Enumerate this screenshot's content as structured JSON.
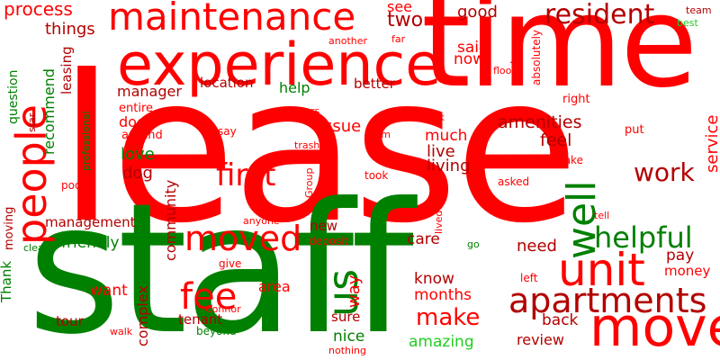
{
  "word_cloud": {
    "palette": {
      "red": "#ff0000",
      "dark_red": "#b30000",
      "green": "#008000",
      "light_green": "#22cc22"
    },
    "words": [
      {
        "text": "lease"
      },
      {
        "text": "staff"
      },
      {
        "text": "time"
      },
      {
        "text": "experience"
      },
      {
        "text": "maintenance"
      },
      {
        "text": "move"
      },
      {
        "text": "unit"
      },
      {
        "text": "apartments"
      },
      {
        "text": "people"
      },
      {
        "text": "moved"
      },
      {
        "text": "fee"
      },
      {
        "text": "us"
      },
      {
        "text": "well"
      },
      {
        "text": "first"
      },
      {
        "text": "helpful"
      },
      {
        "text": "resident"
      },
      {
        "text": "make"
      },
      {
        "text": "work"
      },
      {
        "text": "process"
      },
      {
        "text": "things"
      },
      {
        "text": "see"
      },
      {
        "text": "two"
      },
      {
        "text": "good"
      },
      {
        "text": "said"
      },
      {
        "text": "now"
      },
      {
        "text": "rent"
      },
      {
        "text": "absolutely"
      },
      {
        "text": "team"
      },
      {
        "text": "best"
      },
      {
        "text": "manager"
      },
      {
        "text": "location"
      },
      {
        "text": "help"
      },
      {
        "text": "better"
      },
      {
        "text": "another"
      },
      {
        "text": "far"
      },
      {
        "text": "floor"
      },
      {
        "text": "question"
      },
      {
        "text": "recommend"
      },
      {
        "text": "leasing"
      },
      {
        "text": "star"
      },
      {
        "text": "professional"
      },
      {
        "text": "entire"
      },
      {
        "text": "door"
      },
      {
        "text": "around"
      },
      {
        "text": "love"
      },
      {
        "text": "dog"
      },
      {
        "text": "community"
      },
      {
        "text": "issue"
      },
      {
        "text": "much"
      },
      {
        "text": "live"
      },
      {
        "text": "living"
      },
      {
        "text": "amenities"
      },
      {
        "text": "feel"
      },
      {
        "text": "service"
      },
      {
        "text": "right"
      },
      {
        "text": "put"
      },
      {
        "text": "take"
      },
      {
        "text": "asked"
      },
      {
        "text": "took"
      },
      {
        "text": "say"
      },
      {
        "text": "years"
      },
      {
        "text": "Kim"
      },
      {
        "text": "trash"
      },
      {
        "text": "ask"
      },
      {
        "text": "Group"
      },
      {
        "text": "Thank"
      },
      {
        "text": "moving"
      },
      {
        "text": "pool"
      },
      {
        "text": "management"
      },
      {
        "text": "friendly"
      },
      {
        "text": "clean"
      },
      {
        "text": "anyone"
      },
      {
        "text": "new"
      },
      {
        "text": "deposit"
      },
      {
        "text": "lived"
      },
      {
        "text": "care"
      },
      {
        "text": "go"
      },
      {
        "text": "need"
      },
      {
        "text": "tell"
      },
      {
        "text": "give"
      },
      {
        "text": "want"
      },
      {
        "text": "complex"
      },
      {
        "text": "area"
      },
      {
        "text": "way"
      },
      {
        "text": "know"
      },
      {
        "text": "months"
      },
      {
        "text": "pay"
      },
      {
        "text": "money"
      },
      {
        "text": "left"
      },
      {
        "text": "tour"
      },
      {
        "text": "Connor"
      },
      {
        "text": "walk"
      },
      {
        "text": "tenant"
      },
      {
        "text": "beyond"
      },
      {
        "text": "sure"
      },
      {
        "text": "nice"
      },
      {
        "text": "back"
      },
      {
        "text": "amazing"
      },
      {
        "text": "review"
      },
      {
        "text": "nothing"
      }
    ]
  }
}
